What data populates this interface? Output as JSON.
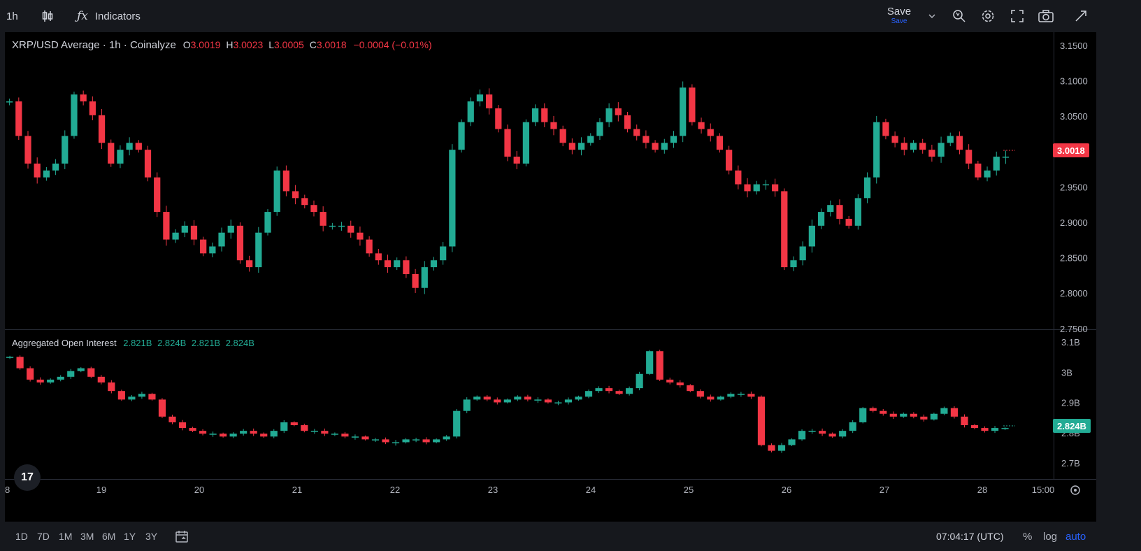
{
  "toolbar": {
    "interval": "1h",
    "indicators_label": "Indicators",
    "save_label": "Save",
    "save_sub_label": "Save"
  },
  "main_legend": {
    "symbol": "XRP/USD Average · 1h · Coinalyze",
    "o_label": "O",
    "o_value": "3.0019",
    "h_label": "H",
    "h_value": "3.0023",
    "l_label": "L",
    "l_value": "3.0005",
    "c_label": "C",
    "c_value": "3.0018",
    "change": "−0.0004 (−0.01%)"
  },
  "oi_legend": {
    "title": "Aggregated Open Interest",
    "v1": "2.821B",
    "v2": "2.824B",
    "v3": "2.821B",
    "v4": "2.824B"
  },
  "price_axis": [
    "3.1500",
    "3.1000",
    "3.0500",
    "3.0000",
    "2.9500",
    "2.9000",
    "2.8500",
    "2.8000",
    "2.7500"
  ],
  "oi_axis": [
    "3.1B",
    "3B",
    "2.9B",
    "2.8B",
    "2.7B"
  ],
  "current_price_label": "3.0018",
  "current_oi_label": "2.824B",
  "time_axis": [
    "8",
    "19",
    "20",
    "21",
    "22",
    "23",
    "24",
    "25",
    "26",
    "27",
    "28",
    "15:00"
  ],
  "ranges": [
    "1D",
    "7D",
    "1M",
    "3M",
    "6M",
    "1Y",
    "3Y"
  ],
  "clock": "07:04:17 (UTC)",
  "scale_options": {
    "percent": "%",
    "log": "log",
    "auto": "auto"
  },
  "colors": {
    "up": "#22ab94",
    "down": "#f23645",
    "accent": "#2962ff"
  },
  "chart_data": [
    {
      "type": "candlestick",
      "title": "XRP/USD Average · 1h · Coinalyze",
      "ylim": [
        2.75,
        3.16
      ],
      "close_series": [
        3.08,
        3.03,
        2.99,
        2.97,
        2.98,
        2.99,
        3.03,
        3.09,
        3.08,
        3.06,
        3.02,
        2.99,
        3.01,
        3.02,
        3.01,
        2.97,
        2.92,
        2.88,
        2.89,
        2.9,
        2.88,
        2.86,
        2.87,
        2.89,
        2.9,
        2.85,
        2.84,
        2.89,
        2.92,
        2.98,
        2.95,
        2.94,
        2.93,
        2.92,
        2.9,
        2.9,
        2.9,
        2.89,
        2.88,
        2.86,
        2.85,
        2.84,
        2.85,
        2.83,
        2.81,
        2.84,
        2.85,
        2.87,
        3.01,
        3.05,
        3.08,
        3.09,
        3.07,
        3.04,
        3.0,
        2.99,
        3.05,
        3.07,
        3.05,
        3.04,
        3.02,
        3.01,
        3.02,
        3.03,
        3.05,
        3.07,
        3.06,
        3.04,
        3.03,
        3.02,
        3.01,
        3.02,
        3.03,
        3.1,
        3.05,
        3.04,
        3.03,
        3.01,
        2.98,
        2.96,
        2.95,
        2.96,
        2.96,
        2.95,
        2.84,
        2.85,
        2.87,
        2.9,
        2.92,
        2.93,
        2.91,
        2.9,
        2.94,
        2.97,
        3.05,
        3.03,
        3.02,
        3.01,
        3.02,
        3.01,
        3.0,
        3.02,
        3.03,
        3.01,
        2.99,
        2.97,
        2.98,
        3.0,
        3.0
      ]
    },
    {
      "type": "candlestick",
      "title": "Aggregated Open Interest",
      "ylim": [
        2.69,
        3.12
      ],
      "close_series": [
        3.07,
        3.03,
        2.99,
        2.98,
        2.99,
        3.0,
        3.02,
        3.03,
        3.0,
        2.98,
        2.95,
        2.92,
        2.93,
        2.94,
        2.92,
        2.86,
        2.84,
        2.82,
        2.81,
        2.8,
        2.8,
        2.79,
        2.8,
        2.81,
        2.8,
        2.79,
        2.81,
        2.84,
        2.83,
        2.81,
        2.81,
        2.8,
        2.8,
        2.79,
        2.79,
        2.78,
        2.78,
        2.77,
        2.77,
        2.78,
        2.78,
        2.77,
        2.78,
        2.79,
        2.88,
        2.92,
        2.93,
        2.92,
        2.91,
        2.92,
        2.93,
        2.92,
        2.92,
        2.91,
        2.91,
        2.92,
        2.93,
        2.95,
        2.96,
        2.95,
        2.94,
        2.96,
        3.01,
        3.09,
        2.99,
        2.98,
        2.97,
        2.95,
        2.93,
        2.92,
        2.93,
        2.94,
        2.94,
        2.93,
        2.76,
        2.74,
        2.76,
        2.78,
        2.81,
        2.81,
        2.8,
        2.79,
        2.81,
        2.84,
        2.89,
        2.88,
        2.87,
        2.86,
        2.87,
        2.86,
        2.85,
        2.87,
        2.89,
        2.86,
        2.83,
        2.82,
        2.81,
        2.82,
        2.82
      ]
    }
  ]
}
